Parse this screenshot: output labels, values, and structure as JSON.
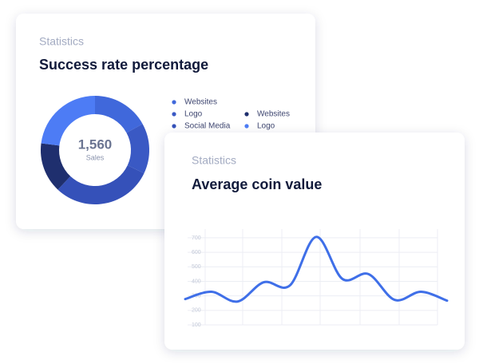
{
  "chart_data": [
    {
      "type": "pie",
      "subtitle": "Statistics",
      "title": "Success rate percentage",
      "center_label": "1,560",
      "center_caption": "Sales",
      "categories": [
        "Websites",
        "Logo",
        "Social Media",
        "Websites",
        "Logo"
      ],
      "values": [
        17,
        15,
        30,
        15,
        23
      ],
      "colors": [
        "#4068db",
        "#3a59c4",
        "#3551b9",
        "#1f2f6e",
        "#4d7cf5"
      ]
    },
    {
      "type": "line",
      "subtitle": "Statistics",
      "title": "Average coin value",
      "values": [
        278,
        328,
        261,
        394,
        372,
        706,
        417,
        450,
        272,
        328,
        267
      ],
      "color": "#3f6fe8",
      "ylim": [
        100,
        760
      ],
      "yticks": [
        100,
        200,
        300,
        400,
        500,
        600,
        700
      ],
      "grid": true
    }
  ]
}
